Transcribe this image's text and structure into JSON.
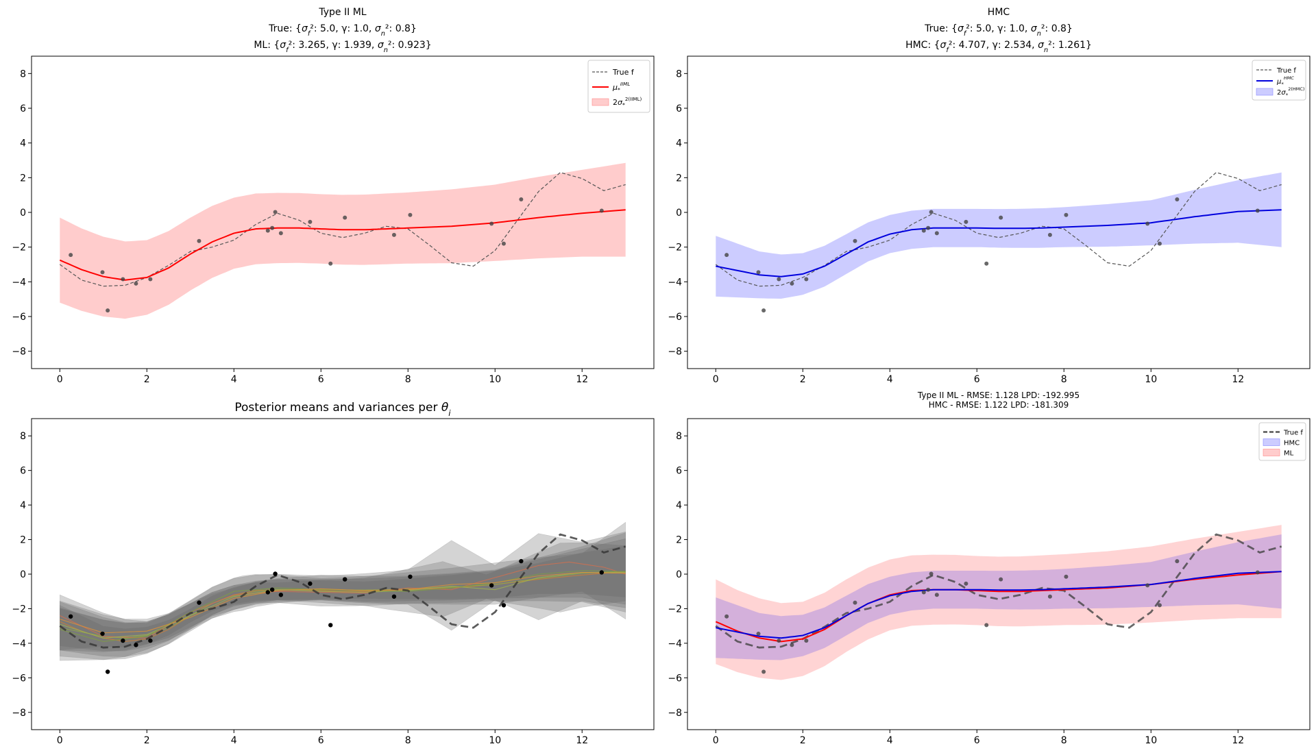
{
  "chart_data": [
    {
      "id": "type2ml",
      "type": "line",
      "title_lines": [
        "Type II ML",
        "True: {σ_f²: 5.0, γ: 1.0, σ_n²: 0.8}",
        "ML: {σ_f²: 3.265, γ: 1.939, σ_n²: 0.923}"
      ],
      "xlim": [
        -0.65,
        13.65
      ],
      "ylim": [
        -9,
        9
      ],
      "xticks": [
        0,
        2,
        4,
        6,
        8,
        10,
        12
      ],
      "yticks": [
        -8,
        -6,
        -4,
        -2,
        0,
        2,
        4,
        6,
        8
      ],
      "legend_position": "top-right",
      "legend": [
        {
          "kind": "dash",
          "label": "True f",
          "color": "#555555"
        },
        {
          "kind": "line",
          "label": "μ*^IIML",
          "color": "#ff0000"
        },
        {
          "kind": "patch",
          "label": "2σ*^2(IIML)",
          "color": "#ffcccc"
        }
      ],
      "mean_color": "#ff0000",
      "band_color": "#ff0000",
      "mean": [
        [
          0,
          -2.75
        ],
        [
          0.5,
          -3.3
        ],
        [
          1.0,
          -3.7
        ],
        [
          1.5,
          -3.9
        ],
        [
          2.0,
          -3.75
        ],
        [
          2.5,
          -3.2
        ],
        [
          3.0,
          -2.4
        ],
        [
          3.5,
          -1.7
        ],
        [
          4.0,
          -1.2
        ],
        [
          4.5,
          -0.95
        ],
        [
          5.0,
          -0.9
        ],
        [
          5.5,
          -0.9
        ],
        [
          6.0,
          -0.95
        ],
        [
          6.5,
          -1.0
        ],
        [
          7.0,
          -1.0
        ],
        [
          7.5,
          -0.95
        ],
        [
          8.0,
          -0.9
        ],
        [
          9.0,
          -0.8
        ],
        [
          10.0,
          -0.6
        ],
        [
          11.0,
          -0.3
        ],
        [
          12.0,
          -0.05
        ],
        [
          13.0,
          0.15
        ]
      ],
      "band_half_width": [
        [
          0,
          2.45
        ],
        [
          2,
          2.15
        ],
        [
          4,
          2.05
        ],
        [
          6,
          2.0
        ],
        [
          8,
          2.05
        ],
        [
          10,
          2.2
        ],
        [
          12,
          2.5
        ],
        [
          13,
          2.7
        ]
      ]
    },
    {
      "id": "hmc",
      "type": "line",
      "title_lines": [
        "HMC",
        "True: {σ_f²: 5.0, γ: 1.0, σ_n²: 0.8}",
        "HMC: {σ_f²: 4.707, γ: 2.534, σ_n²: 1.261}"
      ],
      "xlim": [
        -0.65,
        13.65
      ],
      "ylim": [
        -9,
        9
      ],
      "xticks": [
        0,
        2,
        4,
        6,
        8,
        10,
        12
      ],
      "yticks": [
        -8,
        -6,
        -4,
        -2,
        0,
        2,
        4,
        6,
        8
      ],
      "legend_position": "top-right",
      "legend": [
        {
          "kind": "dash",
          "label": "True f",
          "color": "#555555"
        },
        {
          "kind": "line",
          "label": "μ*^HMC",
          "color": "#0000dd"
        },
        {
          "kind": "patch",
          "label": "2σ*^2(HMC)",
          "color": "#ccccff"
        }
      ],
      "mean_color": "#0000dd",
      "band_color": "#0000ff",
      "mean": [
        [
          0,
          -3.1
        ],
        [
          0.5,
          -3.35
        ],
        [
          1.0,
          -3.6
        ],
        [
          1.5,
          -3.7
        ],
        [
          2.0,
          -3.55
        ],
        [
          2.5,
          -3.1
        ],
        [
          3.0,
          -2.4
        ],
        [
          3.5,
          -1.7
        ],
        [
          4.0,
          -1.25
        ],
        [
          4.5,
          -1.0
        ],
        [
          5.0,
          -0.9
        ],
        [
          5.5,
          -0.9
        ],
        [
          6.0,
          -0.9
        ],
        [
          6.5,
          -0.92
        ],
        [
          7.0,
          -0.92
        ],
        [
          7.5,
          -0.9
        ],
        [
          8.0,
          -0.85
        ],
        [
          9.0,
          -0.75
        ],
        [
          10.0,
          -0.6
        ],
        [
          11.0,
          -0.25
        ],
        [
          12.0,
          0.05
        ],
        [
          13.0,
          0.15
        ]
      ],
      "band_half_width": [
        [
          0,
          1.75
        ],
        [
          1,
          1.35
        ],
        [
          2,
          1.2
        ],
        [
          4,
          1.1
        ],
        [
          6,
          1.1
        ],
        [
          8,
          1.15
        ],
        [
          10,
          1.3
        ],
        [
          12,
          1.8
        ],
        [
          13,
          2.15
        ]
      ]
    },
    {
      "id": "posterior",
      "type": "line",
      "title_lines": [
        "Posterior means and variances per θ_i"
      ],
      "xlim": [
        -0.65,
        13.65
      ],
      "ylim": [
        -9,
        9
      ],
      "xticks": [
        0,
        2,
        4,
        6,
        8,
        10,
        12
      ],
      "yticks": [
        -8,
        -6,
        -4,
        -2,
        0,
        2,
        4,
        6,
        8
      ],
      "legend": []
    },
    {
      "id": "compare",
      "type": "line",
      "title_lines": [
        "Type II ML - RMSE: 1.128  LPD: -192.995",
        "HMC        - RMSE: 1.122  LPD: -181.309"
      ],
      "xlim": [
        -0.65,
        13.65
      ],
      "ylim": [
        -9,
        9
      ],
      "xticks": [
        0,
        2,
        4,
        6,
        8,
        10,
        12
      ],
      "yticks": [
        -8,
        -6,
        -4,
        -2,
        0,
        2,
        4,
        6,
        8
      ],
      "legend_position": "top-right",
      "legend": [
        {
          "kind": "dash",
          "label": "True f",
          "color": "#555555"
        },
        {
          "kind": "patch",
          "label": "HMC",
          "color": "#ccccff"
        },
        {
          "kind": "patch",
          "label": "ML",
          "color": "#ffcccc"
        }
      ]
    }
  ],
  "shared": {
    "true_f": [
      [
        0,
        -3.0
      ],
      [
        0.5,
        -3.9
      ],
      [
        1.0,
        -4.25
      ],
      [
        1.5,
        -4.2
      ],
      [
        2.0,
        -3.75
      ],
      [
        2.5,
        -3.05
      ],
      [
        3.0,
        -2.25
      ],
      [
        3.5,
        -2.0
      ],
      [
        4.0,
        -1.6
      ],
      [
        4.5,
        -0.7
      ],
      [
        5.0,
        -0.05
      ],
      [
        5.5,
        -0.45
      ],
      [
        6.0,
        -1.2
      ],
      [
        6.5,
        -1.45
      ],
      [
        7.0,
        -1.2
      ],
      [
        7.5,
        -0.8
      ],
      [
        8.0,
        -0.95
      ],
      [
        8.5,
        -1.9
      ],
      [
        9.0,
        -2.9
      ],
      [
        9.5,
        -3.1
      ],
      [
        10.0,
        -2.2
      ],
      [
        10.5,
        -0.5
      ],
      [
        11.0,
        1.2
      ],
      [
        11.5,
        2.3
      ],
      [
        12.0,
        1.95
      ],
      [
        12.5,
        1.25
      ],
      [
        13.0,
        1.6
      ]
    ],
    "observations": [
      [
        0.25,
        -2.45
      ],
      [
        0.98,
        -3.45
      ],
      [
        1.1,
        -5.65
      ],
      [
        1.45,
        -3.85
      ],
      [
        1.75,
        -4.1
      ],
      [
        2.08,
        -3.85
      ],
      [
        3.2,
        -1.65
      ],
      [
        4.78,
        -1.05
      ],
      [
        4.88,
        -0.9
      ],
      [
        4.95,
        0.02
      ],
      [
        5.08,
        -1.2
      ],
      [
        5.75,
        -0.55
      ],
      [
        6.22,
        -2.95
      ],
      [
        6.55,
        -0.3
      ],
      [
        7.68,
        -1.3
      ],
      [
        8.05,
        -0.15
      ],
      [
        9.92,
        -0.65
      ],
      [
        10.2,
        -1.8
      ],
      [
        10.6,
        0.75
      ],
      [
        12.45,
        0.1
      ]
    ]
  }
}
